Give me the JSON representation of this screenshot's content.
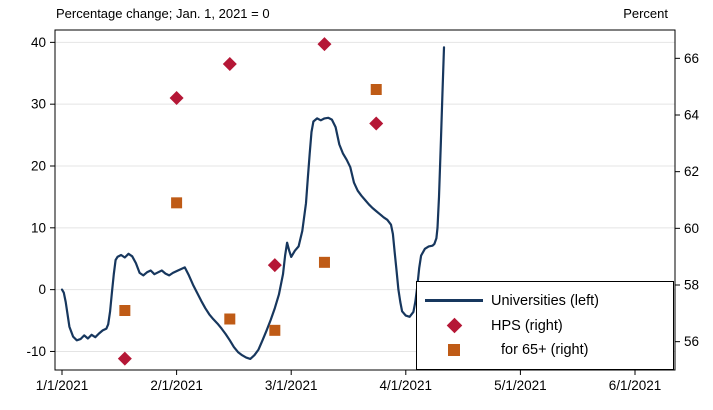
{
  "header": {
    "left_axis_title": "Percentage change; Jan. 1, 2021 = 0",
    "right_axis_title": "Percent"
  },
  "legend": {
    "items": [
      {
        "label": "Universities (left)",
        "swatch": "line"
      },
      {
        "label": "HPS (right)",
        "swatch": "diamond"
      },
      {
        "label": "for 65+ (right)",
        "swatch": "square"
      }
    ]
  },
  "colors": {
    "line": "#17375e",
    "diamond": "#b51736",
    "square": "#bf5b16",
    "grid": "#e4e4e4",
    "axis": "#000000",
    "background": "#ffffff"
  },
  "chart_data": {
    "type": "line",
    "title": "",
    "subtitle": "",
    "grid": "horizontal",
    "legend_position": "inside-bottom-right",
    "x_axis": {
      "unit": "days since 1/1/2021",
      "tick_labels": [
        "1/1/2021",
        "2/1/2021",
        "3/1/2021",
        "4/1/2021",
        "5/1/2021",
        "6/1/2021"
      ],
      "tick_days": [
        0,
        31,
        59,
        90,
        120,
        151
      ]
    },
    "left_axis": {
      "title": "Percentage change; Jan. 1, 2021 = 0",
      "ticks": [
        40,
        30,
        20,
        10,
        0,
        -10
      ],
      "range": [
        -13,
        42
      ]
    },
    "right_axis": {
      "title": "Percent",
      "ticks": [
        66,
        64,
        62,
        60,
        58,
        56
      ],
      "range": [
        55,
        67
      ]
    },
    "series": [
      {
        "name": "Universities (left)",
        "axis": "left",
        "type": "line",
        "points": [
          [
            0,
            0
          ],
          [
            0.5,
            -0.5
          ],
          [
            1,
            -2
          ],
          [
            2,
            -6
          ],
          [
            3,
            -7.6
          ],
          [
            4,
            -8.2
          ],
          [
            5,
            -8
          ],
          [
            6,
            -7.4
          ],
          [
            7,
            -7.9
          ],
          [
            8,
            -7.3
          ],
          [
            9,
            -7.7
          ],
          [
            10,
            -7.1
          ],
          [
            11,
            -6.6
          ],
          [
            12,
            -6.3
          ],
          [
            12.5,
            -5.6
          ],
          [
            13,
            -3.5
          ],
          [
            13.5,
            -0.5
          ],
          [
            14,
            2.5
          ],
          [
            14.5,
            4.8
          ],
          [
            15,
            5.3
          ],
          [
            16,
            5.6
          ],
          [
            17,
            5.2
          ],
          [
            18,
            5.8
          ],
          [
            19,
            5.4
          ],
          [
            20,
            4.3
          ],
          [
            21,
            2.7
          ],
          [
            22,
            2.3
          ],
          [
            23,
            2.8
          ],
          [
            24,
            3.1
          ],
          [
            25,
            2.5
          ],
          [
            26,
            2.8
          ],
          [
            27,
            3.1
          ],
          [
            28,
            2.6
          ],
          [
            29,
            2.3
          ],
          [
            30,
            2.7
          ],
          [
            31,
            3.0
          ],
          [
            32,
            3.3
          ],
          [
            33,
            3.6
          ],
          [
            34,
            2.3
          ],
          [
            35,
            0.8
          ],
          [
            36,
            -0.5
          ],
          [
            37,
            -1.8
          ],
          [
            38,
            -3.0
          ],
          [
            39,
            -4.0
          ],
          [
            40,
            -4.8
          ],
          [
            41,
            -5.5
          ],
          [
            42,
            -6.3
          ],
          [
            43,
            -7.2
          ],
          [
            44,
            -8.2
          ],
          [
            45,
            -9.3
          ],
          [
            46,
            -10.1
          ],
          [
            47,
            -10.6
          ],
          [
            48,
            -11.0
          ],
          [
            49,
            -11.2
          ],
          [
            50,
            -10.6
          ],
          [
            51,
            -9.7
          ],
          [
            52,
            -8.2
          ],
          [
            53,
            -6.6
          ],
          [
            54,
            -4.9
          ],
          [
            55,
            -3.0
          ],
          [
            56,
            -0.8
          ],
          [
            57,
            2.5
          ],
          [
            57.5,
            5.5
          ],
          [
            58,
            7.6
          ],
          [
            58.5,
            6.3
          ],
          [
            59,
            5.3
          ],
          [
            60,
            6.3
          ],
          [
            61,
            7.0
          ],
          [
            62,
            9.5
          ],
          [
            63,
            14.0
          ],
          [
            63.5,
            18.0
          ],
          [
            64,
            22.0
          ],
          [
            64.5,
            25.5
          ],
          [
            65,
            27.2
          ],
          [
            66,
            27.7
          ],
          [
            67,
            27.4
          ],
          [
            68,
            27.7
          ],
          [
            69,
            27.8
          ],
          [
            70,
            27.5
          ],
          [
            71,
            26.3
          ],
          [
            72,
            23.5
          ],
          [
            73,
            22.0
          ],
          [
            74,
            21.0
          ],
          [
            75,
            19.8
          ],
          [
            76,
            17.3
          ],
          [
            77,
            16.0
          ],
          [
            78,
            15.2
          ],
          [
            79,
            14.5
          ],
          [
            80,
            13.8
          ],
          [
            81,
            13.2
          ],
          [
            82,
            12.7
          ],
          [
            83,
            12.2
          ],
          [
            84,
            11.7
          ],
          [
            85,
            11.3
          ],
          [
            86,
            10.5
          ],
          [
            86.5,
            9.0
          ],
          [
            87,
            6.0
          ],
          [
            87.5,
            3.0
          ],
          [
            88,
            0.0
          ],
          [
            88.5,
            -2.0
          ],
          [
            89,
            -3.5
          ],
          [
            90,
            -4.2
          ],
          [
            91,
            -4.4
          ],
          [
            92,
            -3.6
          ],
          [
            92.5,
            -2.0
          ],
          [
            93,
            0.5
          ],
          [
            93.5,
            3.5
          ],
          [
            94,
            5.5
          ],
          [
            95,
            6.6
          ],
          [
            96,
            7.0
          ],
          [
            97,
            7.1
          ],
          [
            97.5,
            7.4
          ],
          [
            98,
            8.3
          ],
          [
            98.3,
            10.0
          ],
          [
            98.7,
            15.0
          ],
          [
            99.2,
            24.0
          ],
          [
            99.6,
            32.0
          ],
          [
            100,
            39.2
          ]
        ]
      },
      {
        "name": "HPS (right)",
        "axis": "right",
        "type": "scatter",
        "marker": "diamond",
        "points": [
          [
            17,
            55.4
          ],
          [
            31,
            64.6
          ],
          [
            44,
            65.8
          ],
          [
            55,
            58.7
          ],
          [
            68,
            66.5
          ],
          [
            82,
            63.7
          ]
        ]
      },
      {
        "name": "for 65+ (right)",
        "axis": "right",
        "type": "scatter",
        "marker": "square",
        "points": [
          [
            17,
            57.1
          ],
          [
            31,
            60.9
          ],
          [
            44,
            56.8
          ],
          [
            55,
            56.4
          ],
          [
            68,
            58.8
          ],
          [
            82,
            64.9
          ]
        ]
      }
    ]
  }
}
